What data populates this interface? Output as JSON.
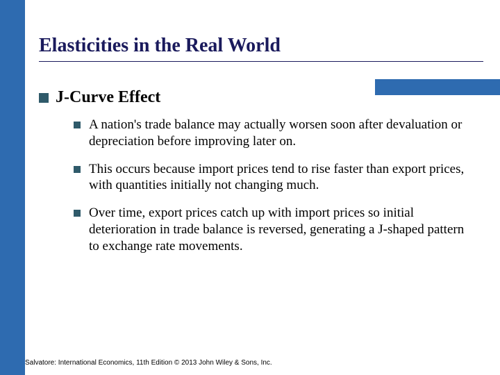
{
  "colors": {
    "blue_band": "#2e6bb0",
    "title_color": "#1a1a5c",
    "bullet_color": "#2f5a6a",
    "background": "#ffffff"
  },
  "title": "Elasticities in the Real World",
  "heading": "J-Curve Effect",
  "points": [
    "A nation's trade balance may actually worsen soon after devaluation or depreciation before improving later on.",
    "This occurs because import prices tend to rise faster than export prices, with quantities initially not changing much.",
    "Over time, export prices catch up with import prices so initial deterioration in trade balance is reversed, generating a J-shaped pattern to exchange rate movements."
  ],
  "footer": "Salvatore: International Economics, 11th Edition © 2013 John Wiley & Sons, Inc."
}
